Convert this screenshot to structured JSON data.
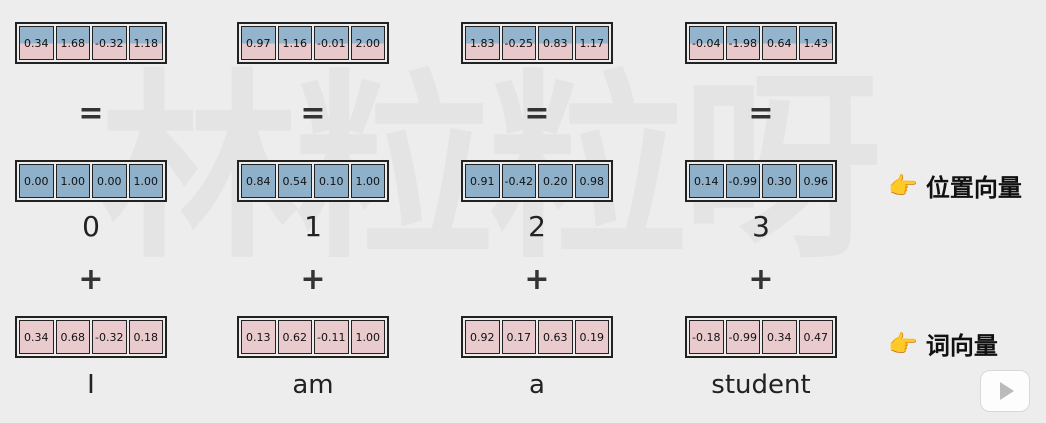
{
  "watermark": "林粒粒呀",
  "symbols": {
    "equals": "=",
    "plus": "+"
  },
  "columns": [
    {
      "sum": [
        "0.34",
        "1.68",
        "-0.32",
        "1.18"
      ],
      "position": [
        "0.00",
        "1.00",
        "0.00",
        "1.00"
      ],
      "index": "0",
      "word_vec": [
        "0.34",
        "0.68",
        "-0.32",
        "0.18"
      ],
      "word": "I"
    },
    {
      "sum": [
        "0.97",
        "1.16",
        "-0.01",
        "2.00"
      ],
      "position": [
        "0.84",
        "0.54",
        "0.10",
        "1.00"
      ],
      "index": "1",
      "word_vec": [
        "0.13",
        "0.62",
        "-0.11",
        "1.00"
      ],
      "word": "am"
    },
    {
      "sum": [
        "1.83",
        "-0.25",
        "0.83",
        "1.17"
      ],
      "position": [
        "0.91",
        "-0.42",
        "0.20",
        "0.98"
      ],
      "index": "2",
      "word_vec": [
        "0.92",
        "0.17",
        "0.63",
        "0.19"
      ],
      "word": "a"
    },
    {
      "sum": [
        "-0.04",
        "-1.98",
        "0.64",
        "1.43"
      ],
      "position": [
        "0.14",
        "-0.99",
        "0.30",
        "0.96"
      ],
      "index": "3",
      "word_vec": [
        "-0.18",
        "-0.99",
        "0.34",
        "0.47"
      ],
      "word": "student"
    }
  ],
  "legend": {
    "position_vector": "位置向量",
    "word_vector": "词向量",
    "hand_icon": "hand-pointing-right-icon"
  },
  "colors": {
    "position_blue": "#8fb0c9",
    "word_pink": "#e9cbcd",
    "background": "#ededed"
  }
}
